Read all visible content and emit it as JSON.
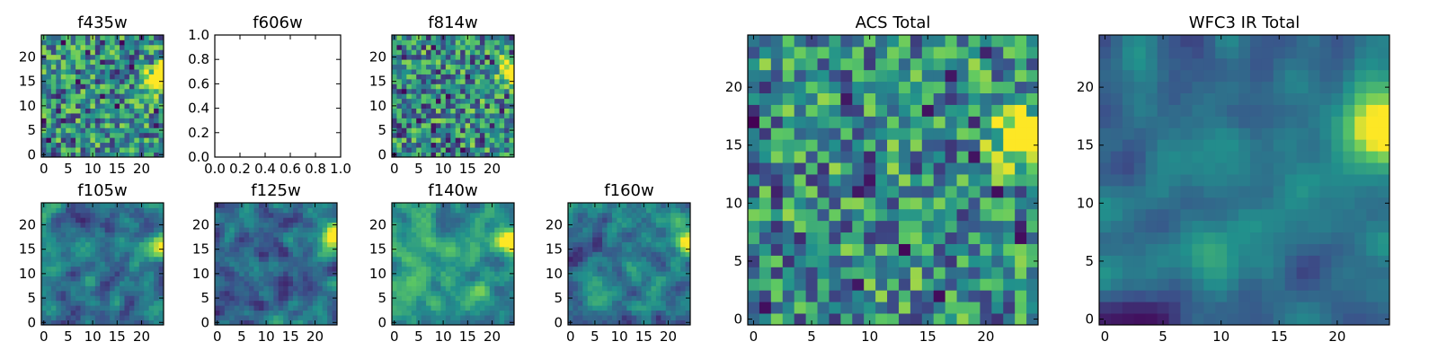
{
  "figure": {
    "colormap": [
      "#440154",
      "#3b528b",
      "#21918c",
      "#5ec962",
      "#fde725"
    ]
  },
  "chart_data": [
    {
      "type": "heatmap",
      "title": "f435w",
      "size": 25,
      "has_image": true,
      "seed": 11,
      "style": "noisy",
      "bright_spot": {
        "x": 23,
        "y": 16
      },
      "x_ticks": [
        "0",
        "5",
        "10",
        "15",
        "20"
      ],
      "y_ticks": [
        "0",
        "5",
        "10",
        "15",
        "20"
      ],
      "x_tick_values": [
        0,
        5,
        10,
        15,
        20
      ],
      "y_tick_values": [
        0,
        5,
        10,
        15,
        20
      ],
      "range": [
        -0.5,
        24.5
      ]
    },
    {
      "type": "heatmap",
      "title": "f606w",
      "has_image": false,
      "x_ticks": [
        "0.0",
        "0.2",
        "0.4",
        "0.6",
        "0.8",
        "1.0"
      ],
      "y_ticks": [
        "0.0",
        "0.2",
        "0.4",
        "0.6",
        "0.8",
        "1.0"
      ],
      "x_tick_values": [
        0,
        0.2,
        0.4,
        0.6,
        0.8,
        1.0
      ],
      "y_tick_values": [
        0,
        0.2,
        0.4,
        0.6,
        0.8,
        1.0
      ],
      "range": [
        0,
        1
      ]
    },
    {
      "type": "heatmap",
      "title": "f814w",
      "size": 25,
      "has_image": true,
      "seed": 23,
      "style": "noisy",
      "bright_spot": {
        "x": 24,
        "y": 17
      },
      "x_ticks": [
        "0",
        "5",
        "10",
        "15",
        "20"
      ],
      "y_ticks": [
        "0",
        "5",
        "10",
        "15",
        "20"
      ],
      "x_tick_values": [
        0,
        5,
        10,
        15,
        20
      ],
      "y_tick_values": [
        0,
        5,
        10,
        15,
        20
      ],
      "range": [
        -0.5,
        24.5
      ]
    },
    {
      "type": "heatmap",
      "title": "f105w",
      "size": 25,
      "has_image": true,
      "seed": 37,
      "style": "smooth",
      "bright_spot": {
        "x": 24,
        "y": 16
      },
      "x_ticks": [
        "0",
        "5",
        "10",
        "15",
        "20"
      ],
      "y_ticks": [
        "0",
        "5",
        "10",
        "15",
        "20"
      ],
      "x_tick_values": [
        0,
        5,
        10,
        15,
        20
      ],
      "y_tick_values": [
        0,
        5,
        10,
        15,
        20
      ],
      "range": [
        -0.5,
        24.5
      ]
    },
    {
      "type": "heatmap",
      "title": "f125w",
      "size": 25,
      "has_image": true,
      "seed": 41,
      "style": "smooth",
      "bright_spot": {
        "x": 24,
        "y": 17
      },
      "x_ticks": [
        "0",
        "5",
        "10",
        "15",
        "20"
      ],
      "y_ticks": [
        "0",
        "5",
        "10",
        "15",
        "20"
      ],
      "x_tick_values": [
        0,
        5,
        10,
        15,
        20
      ],
      "y_tick_values": [
        0,
        5,
        10,
        15,
        20
      ],
      "range": [
        -0.5,
        24.5
      ]
    },
    {
      "type": "heatmap",
      "title": "f140w",
      "size": 25,
      "has_image": true,
      "seed": 53,
      "style": "bright",
      "bright_spot": {
        "x": 24,
        "y": 17
      },
      "x_ticks": [
        "0",
        "5",
        "10",
        "15",
        "20"
      ],
      "y_ticks": [
        "0",
        "5",
        "10",
        "15",
        "20"
      ],
      "x_tick_values": [
        0,
        5,
        10,
        15,
        20
      ],
      "y_tick_values": [
        0,
        5,
        10,
        15,
        20
      ],
      "range": [
        -0.5,
        24.5
      ]
    },
    {
      "type": "heatmap",
      "title": "f160w",
      "size": 25,
      "has_image": true,
      "seed": 67,
      "style": "smooth",
      "bright_spot": {
        "x": 24,
        "y": 17
      },
      "x_ticks": [
        "0",
        "5",
        "10",
        "15",
        "20"
      ],
      "y_ticks": [
        "0",
        "5",
        "10",
        "15",
        "20"
      ],
      "x_tick_values": [
        0,
        5,
        10,
        15,
        20
      ],
      "y_tick_values": [
        0,
        5,
        10,
        15,
        20
      ],
      "range": [
        -0.5,
        24.5
      ]
    },
    {
      "type": "heatmap",
      "title": "ACS Total",
      "size": 25,
      "has_image": true,
      "seed": 79,
      "style": "noisy",
      "bright_spot": {
        "x": 24,
        "y": 16
      },
      "x_ticks": [
        "0",
        "5",
        "10",
        "15",
        "20"
      ],
      "y_ticks": [
        "0",
        "5",
        "10",
        "15",
        "20"
      ],
      "x_tick_values": [
        0,
        5,
        10,
        15,
        20
      ],
      "y_tick_values": [
        0,
        5,
        10,
        15,
        20
      ],
      "range": [
        -0.5,
        24.5
      ]
    },
    {
      "type": "heatmap",
      "title": "WFC3 IR Total",
      "size": 25,
      "has_image": true,
      "seed": 97,
      "style": "smooth_dark",
      "bright_spot": {
        "x": 24,
        "y": 17
      },
      "x_ticks": [
        "0",
        "5",
        "10",
        "15",
        "20"
      ],
      "y_ticks": [
        "0",
        "5",
        "10",
        "15",
        "20"
      ],
      "x_tick_values": [
        0,
        5,
        10,
        15,
        20
      ],
      "y_tick_values": [
        0,
        5,
        10,
        15,
        20
      ],
      "range": [
        -0.5,
        24.5
      ]
    }
  ]
}
